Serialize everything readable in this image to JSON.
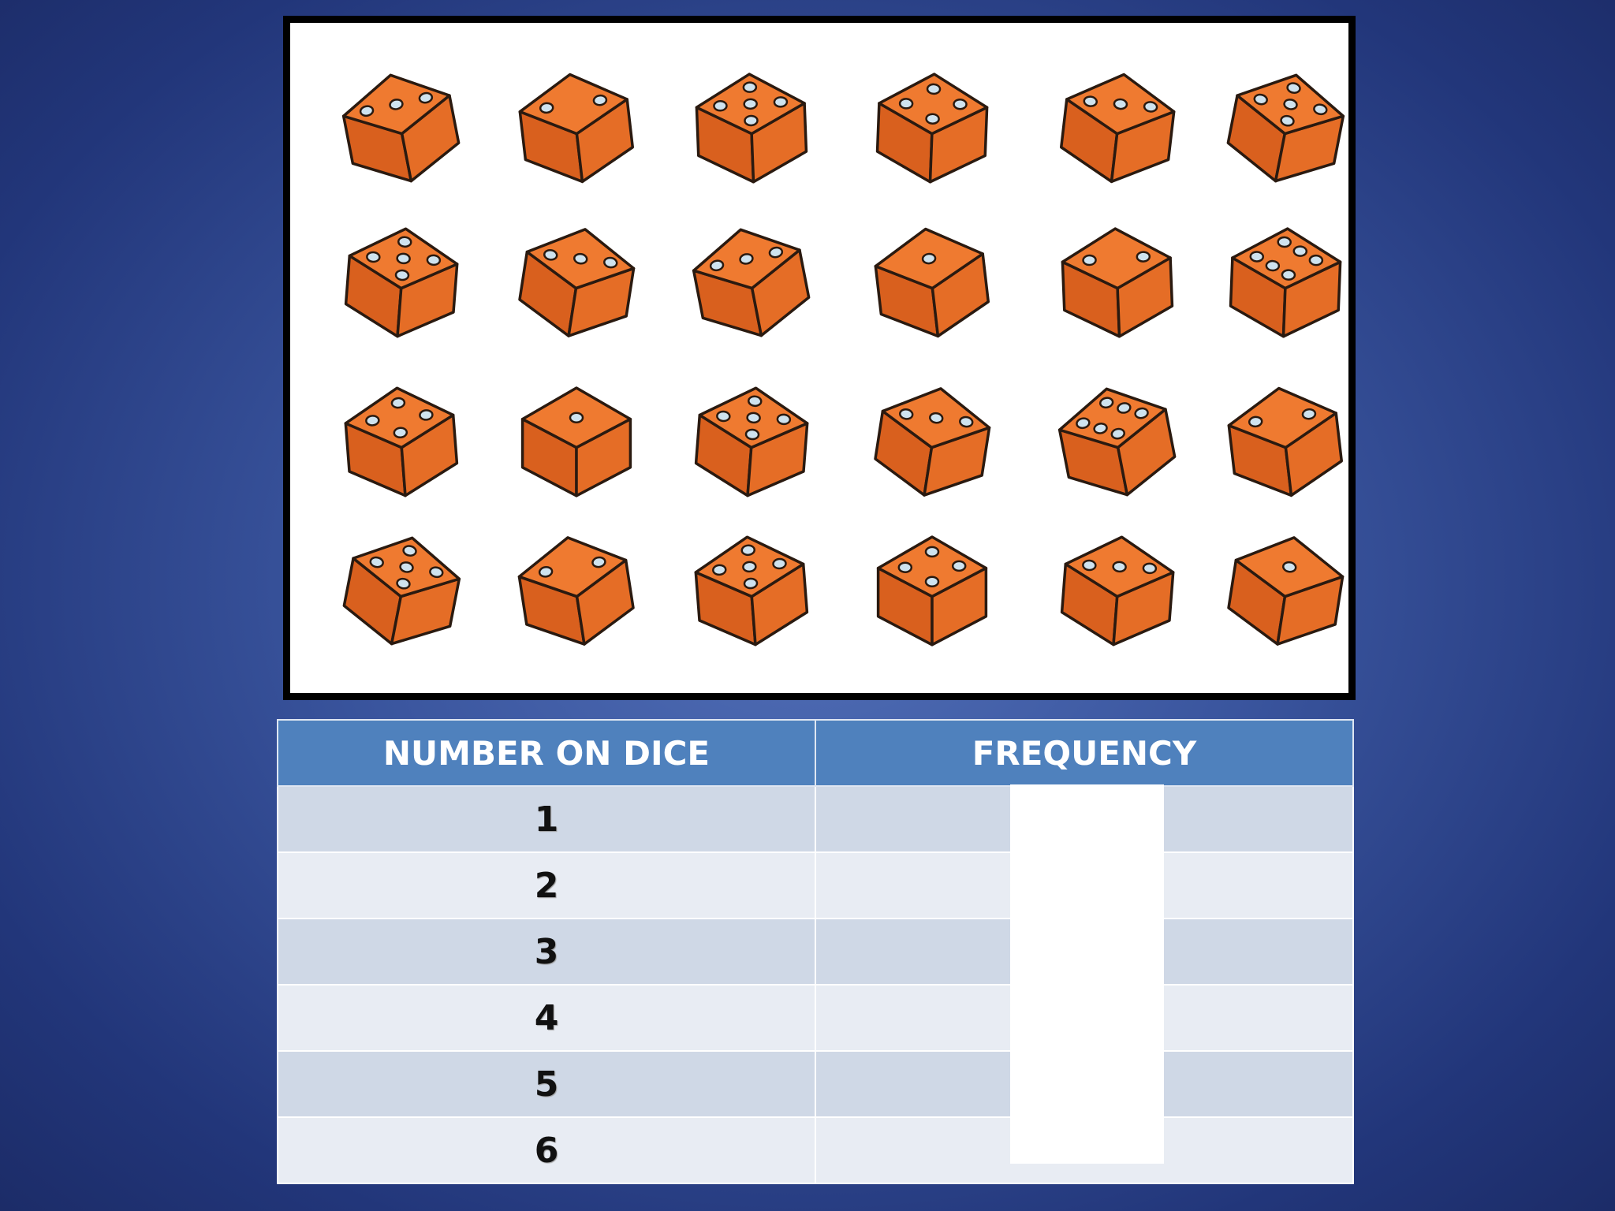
{
  "image": {
    "dice": [
      [
        3,
        2,
        5,
        4,
        3,
        5
      ],
      [
        5,
        3,
        3,
        1,
        2,
        6
      ],
      [
        4,
        1,
        5,
        3,
        6,
        2
      ],
      [
        5,
        2,
        5,
        4,
        3,
        1
      ]
    ]
  },
  "table": {
    "header": [
      "NUMBER ON DICE",
      "FREQUENCY"
    ],
    "rows": [
      1,
      2,
      3,
      4,
      5,
      6
    ]
  }
}
